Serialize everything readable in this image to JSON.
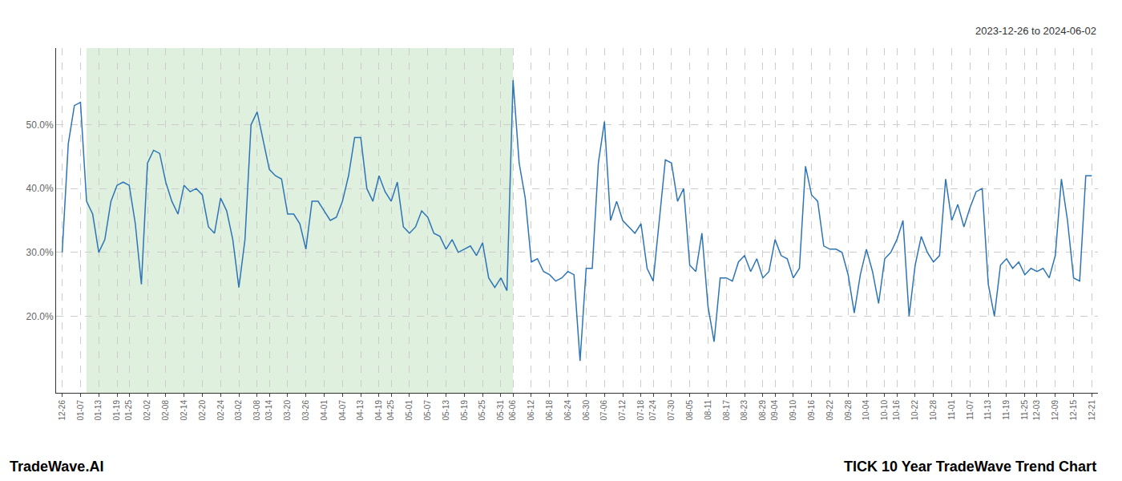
{
  "chart_data": {
    "type": "line",
    "title": "TICK 10 Year TradeWave Trend Chart",
    "subtitle": "2023-12-26 to 2024-06-02",
    "annotations": [
      "TradeWave.AI"
    ],
    "color": "#2e75b6",
    "grid": true,
    "ylim": [
      8,
      62
    ],
    "yticks": [
      {
        "value": 20,
        "label": "20.0%"
      },
      {
        "value": 30,
        "label": "30.0%"
      },
      {
        "value": 40,
        "label": "40.0%"
      },
      {
        "value": 50,
        "label": "50.0%"
      }
    ],
    "shaded_region": {
      "start": 4,
      "end": 74,
      "color": "#dff0de"
    },
    "categories": [
      "12-26",
      null,
      null,
      "01-07",
      null,
      null,
      "01-13",
      null,
      null,
      "01-19",
      null,
      "01-25",
      null,
      null,
      "02-02",
      null,
      null,
      "02-08",
      null,
      null,
      "02-14",
      null,
      null,
      "02-20",
      null,
      null,
      "02-24",
      null,
      null,
      "03-02",
      null,
      null,
      "03-08",
      null,
      "03-14",
      null,
      null,
      "03-20",
      null,
      null,
      "03-26",
      null,
      null,
      "04-01",
      null,
      null,
      "04-07",
      null,
      null,
      "04-13",
      null,
      null,
      "04-19",
      null,
      "04-25",
      null,
      null,
      "05-01",
      null,
      null,
      "05-07",
      null,
      null,
      "05-13",
      null,
      null,
      "05-19",
      null,
      null,
      "05-25",
      null,
      null,
      "05-31",
      null,
      "06-06",
      null,
      null,
      "06-12",
      null,
      null,
      "06-18",
      null,
      null,
      "06-24",
      null,
      null,
      "06-30",
      null,
      null,
      "07-06",
      null,
      null,
      "07-12",
      null,
      null,
      "07-18",
      null,
      "07-24",
      null,
      null,
      "07-30",
      null,
      null,
      "08-05",
      null,
      null,
      "08-11",
      null,
      null,
      "08-17",
      null,
      null,
      "08-23",
      null,
      null,
      "08-29",
      null,
      "09-04",
      null,
      null,
      "09-10",
      null,
      null,
      "09-16",
      null,
      null,
      "09-22",
      null,
      null,
      "09-28",
      null,
      null,
      "10-04",
      null,
      null,
      "10-10",
      null,
      "10-16",
      null,
      null,
      "10-22",
      null,
      null,
      "10-28",
      null,
      null,
      "11-01",
      null,
      null,
      "11-07",
      null,
      null,
      "11-13",
      null,
      null,
      "11-19",
      null,
      null,
      "11-25",
      null,
      "12-03",
      null,
      null,
      "12-09",
      null,
      null,
      "12-15",
      null,
      null,
      "12-21"
    ],
    "values": [
      30.0,
      47.0,
      53.0,
      53.5,
      38.0,
      36.0,
      30.0,
      32.0,
      38.0,
      40.5,
      41.0,
      40.5,
      34.5,
      25.0,
      44.0,
      46.0,
      45.5,
      41.0,
      38.0,
      36.0,
      40.5,
      39.5,
      40.0,
      39.0,
      34.0,
      33.0,
      38.5,
      36.5,
      32.0,
      24.5,
      32.0,
      50.0,
      52.0,
      47.5,
      43.0,
      42.0,
      41.5,
      36.0,
      36.0,
      34.5,
      30.5,
      38.0,
      38.0,
      36.5,
      35.0,
      35.5,
      38.0,
      42.0,
      48.0,
      48.0,
      40.0,
      38.0,
      42.0,
      39.5,
      38.0,
      41.0,
      34.0,
      33.0,
      34.0,
      36.5,
      35.5,
      33.0,
      32.5,
      30.5,
      32.0,
      30.0,
      30.5,
      31.0,
      29.5,
      31.5,
      26.0,
      24.5,
      26.0,
      24.0,
      57.0,
      44.0,
      38.5,
      28.5,
      29.0,
      27.0,
      26.5,
      25.5,
      26.0,
      27.0,
      26.5,
      13.0,
      27.5,
      27.5,
      44.0,
      50.5,
      35.0,
      38.0,
      35.0,
      34.0,
      33.0,
      34.5,
      27.5,
      25.5,
      35.0,
      44.5,
      44.0,
      38.0,
      40.0,
      28.0,
      27.0,
      33.0,
      21.5,
      16.0,
      26.0,
      26.0,
      25.5,
      28.5,
      29.5,
      27.0,
      29.0,
      26.0,
      27.0,
      32.0,
      29.5,
      29.0,
      26.0,
      27.5,
      43.5,
      39.0,
      38.0,
      31.0,
      30.5,
      30.5,
      30.0,
      26.5,
      20.5,
      26.5,
      30.5,
      27.0,
      22.0,
      29.0,
      30.0,
      32.0,
      35.0,
      20.0,
      28.0,
      32.5,
      30.0,
      28.5,
      29.5,
      41.5,
      35.0,
      37.5,
      34.0,
      37.0,
      39.5,
      40.0,
      25.0,
      20.0,
      28.0,
      29.0,
      27.5,
      28.5,
      26.5,
      27.5,
      27.0,
      27.5,
      26.0,
      29.5,
      41.5,
      35.0,
      26.0,
      25.5,
      42.0,
      42.0
    ]
  }
}
